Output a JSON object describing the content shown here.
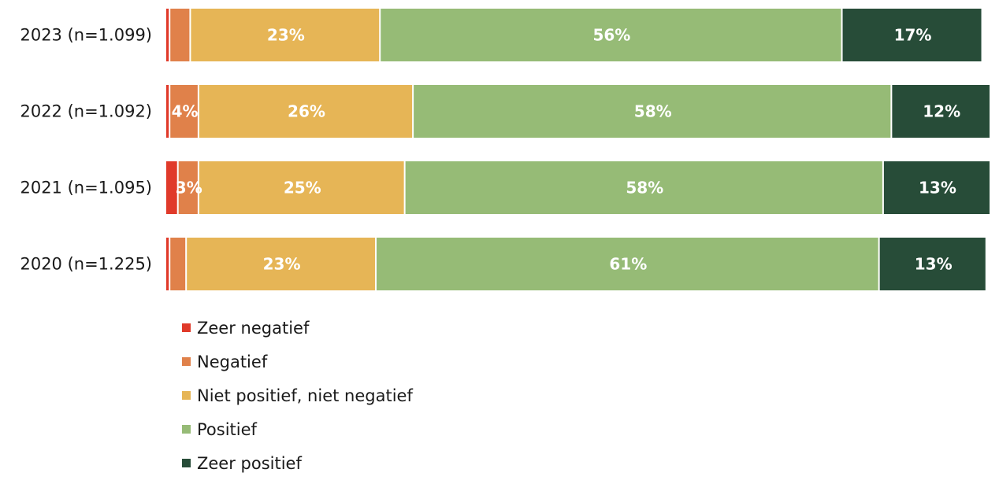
{
  "chart_data": {
    "type": "bar",
    "orientation": "horizontal",
    "stacked": true,
    "categories": [
      "2023 (n=1.099)",
      "2022 (n=1.092)",
      "2021 (n=1.095)",
      "2020 (n=1.225)"
    ],
    "series": [
      {
        "name": "Zeer negatief",
        "color": "#e03a2a",
        "values": [
          0.5,
          0.5,
          1.5,
          0.5
        ],
        "labels": [
          "",
          "",
          "",
          ""
        ]
      },
      {
        "name": "Negatief",
        "color": "#e0814a",
        "values": [
          2.5,
          3.5,
          2.5,
          2
        ],
        "labels": [
          "",
          "4%",
          "3%",
          ""
        ]
      },
      {
        "name": "Niet positief, niet negatief",
        "color": "#e6b556",
        "values": [
          23,
          26,
          25,
          23
        ],
        "labels": [
          "23%",
          "26%",
          "25%",
          "23%"
        ]
      },
      {
        "name": "Positief",
        "color": "#96bb76",
        "values": [
          56,
          58,
          58,
          61
        ],
        "labels": [
          "56%",
          "58%",
          "58%",
          "61%"
        ]
      },
      {
        "name": "Zeer positief",
        "color": "#274c38",
        "values": [
          17,
          12,
          13,
          13
        ],
        "labels": [
          "17%",
          "12%",
          "13%",
          "13%"
        ]
      }
    ],
    "xlim": [
      0,
      100
    ],
    "legend_position": "bottom-left",
    "grid": false
  }
}
